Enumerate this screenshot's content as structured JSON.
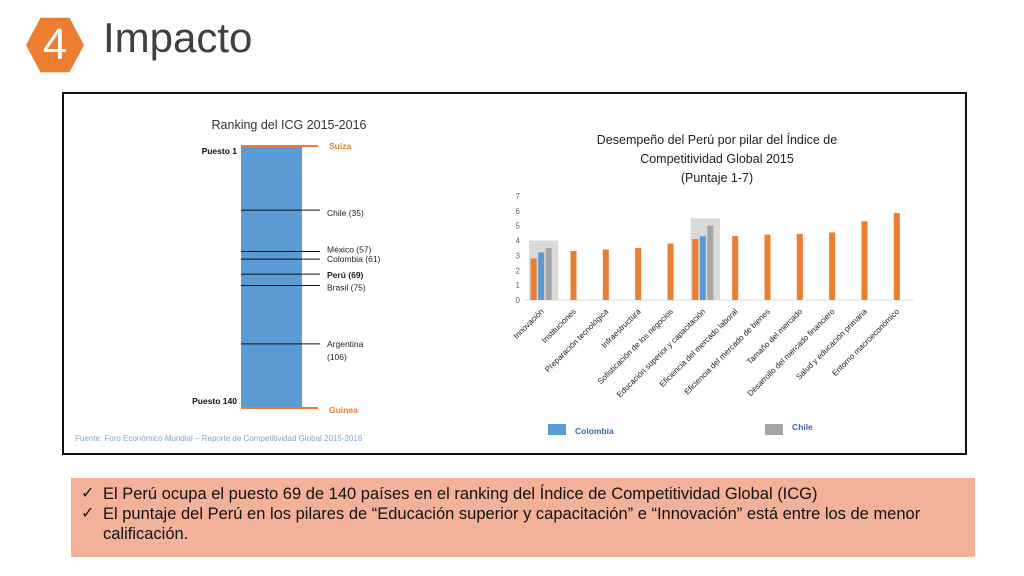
{
  "header": {
    "number": "4",
    "title": "Impacto"
  },
  "source": "Fuente: Foro Económico Mundial – Reporte de Competitividad Global 2015-2016",
  "chart_data": [
    {
      "type": "bar",
      "title": "Ranking del ICG 2015-2016",
      "axis": {
        "top_label": "Puesto 1",
        "bottom_label": "Puesto 140",
        "min": 1,
        "max": 140
      },
      "markers": [
        {
          "label": "Suiza",
          "rank": 1,
          "highlight": "orange"
        },
        {
          "label": "Chile (35)",
          "rank": 35
        },
        {
          "label": "México (57)",
          "rank": 57
        },
        {
          "label": "Colombia (61)",
          "rank": 61
        },
        {
          "label": "Perú (69)",
          "rank": 69,
          "bold": true
        },
        {
          "label": "Brasil (75)",
          "rank": 75
        },
        {
          "label": "Argentina (106)",
          "rank": 106,
          "label_lines": [
            "Argentina",
            "(106)"
          ]
        },
        {
          "label": "Guinea",
          "rank": 140,
          "highlight": "orange"
        }
      ]
    },
    {
      "type": "bar",
      "title_lines": [
        "Desempeño del Perú por pilar del Índice de",
        "Competitividad Global 2015",
        "(Puntaje 1-7)"
      ],
      "ylim": [
        0,
        7
      ],
      "yticks": [
        "0",
        "1",
        "2",
        "3",
        "4",
        "5",
        "6",
        "7"
      ],
      "categories": [
        "Innovación",
        "Instituciones",
        "Preparación tecnológica",
        "Infraestructura",
        "Sofisticación de los negocios",
        "Educación superior y capacitación",
        "Eficiencia del mercado laboral",
        "Eficiencia del mercado de bienes",
        "Tamaño del mercado",
        "Desarrollo del mercado financiero",
        "Salud y educación primaria",
        "Entorno macroeconómico"
      ],
      "series": [
        {
          "color": "#ed7d31",
          "values": [
            2.8,
            3.3,
            3.4,
            3.5,
            3.8,
            4.1,
            4.3,
            4.4,
            4.45,
            4.55,
            5.3,
            5.85
          ]
        },
        {
          "name": "Colombia",
          "color": "#5b9bd5",
          "values": [
            3.2,
            null,
            null,
            null,
            null,
            4.3,
            null,
            null,
            null,
            null,
            null,
            null
          ]
        },
        {
          "name": "Chile",
          "color": "#a5a5a5",
          "values": [
            3.5,
            null,
            null,
            null,
            null,
            5.0,
            null,
            null,
            null,
            null,
            null,
            null
          ]
        }
      ],
      "highlighted_categories": [
        0,
        5
      ],
      "legend": [
        "Colombia",
        "Chile"
      ]
    }
  ],
  "bullets": [
    "El Perú ocupa el puesto 69 de 140 países en el ranking del Índice de Competitividad Global (ICG)",
    "El puntaje del Perú en los pilares de “Educación superior y capacitación” e “Innovación” está entre los de menor calificación."
  ],
  "check_glyph": "✓"
}
